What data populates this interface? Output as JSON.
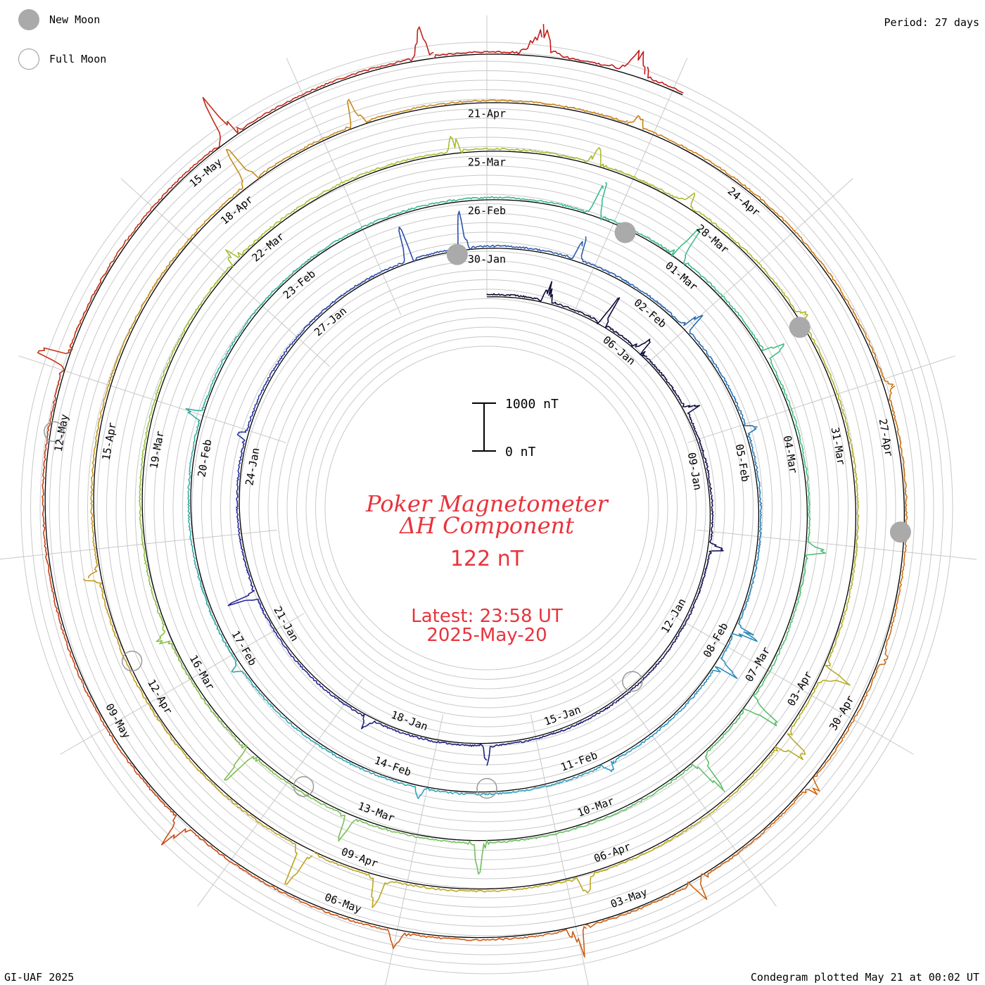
{
  "legend": {
    "new_moon_label": "New Moon",
    "full_moon_label": "Full Moon",
    "new_moon_color": "#aaaaaa",
    "full_moon_color": "#999999"
  },
  "period_label": "Period: 27 days",
  "footer_left": "GI-UAF 2025",
  "footer_right": "Condegram plotted May 21 at 00:02 UT",
  "scale_bar": {
    "top_label": "1000 nT",
    "bottom_label": "0 nT"
  },
  "center": {
    "title_line1": "Poker Magnetometer",
    "title_line2": "ΔH Component",
    "current_value": "122 nT",
    "latest_line1": "Latest: 23:58 UT",
    "latest_line2": "2025-May-20",
    "title_color": "#e8333c"
  },
  "chart_data": {
    "type": "line",
    "subtype": "condegram (spiral)",
    "period_days": 27,
    "start_date": "2025-01-03",
    "end_date": "2025-05-20",
    "grid": true,
    "date_labels": [
      {
        "day": 3,
        "text": "06-Jan"
      },
      {
        "day": 6,
        "text": "09-Jan"
      },
      {
        "day": 9,
        "text": "12-Jan"
      },
      {
        "day": 12,
        "text": "15-Jan"
      },
      {
        "day": 15,
        "text": "18-Jan"
      },
      {
        "day": 18,
        "text": "21-Jan"
      },
      {
        "day": 21,
        "text": "24-Jan"
      },
      {
        "day": 24,
        "text": "27-Jan"
      },
      {
        "day": 27,
        "text": "30-Jan"
      },
      {
        "day": 30,
        "text": "02-Feb"
      },
      {
        "day": 33,
        "text": "05-Feb"
      },
      {
        "day": 36,
        "text": "08-Feb"
      },
      {
        "day": 39,
        "text": "11-Feb"
      },
      {
        "day": 42,
        "text": "14-Feb"
      },
      {
        "day": 45,
        "text": "17-Feb"
      },
      {
        "day": 48,
        "text": "20-Feb"
      },
      {
        "day": 51,
        "text": "23-Feb"
      },
      {
        "day": 54,
        "text": "26-Feb"
      },
      {
        "day": 57,
        "text": "01-Mar"
      },
      {
        "day": 60,
        "text": "04-Mar"
      },
      {
        "day": 63,
        "text": "07-Mar"
      },
      {
        "day": 66,
        "text": "10-Mar"
      },
      {
        "day": 69,
        "text": "13-Mar"
      },
      {
        "day": 72,
        "text": "16-Mar"
      },
      {
        "day": 75,
        "text": "19-Mar"
      },
      {
        "day": 78,
        "text": "22-Mar"
      },
      {
        "day": 81,
        "text": "25-Mar"
      },
      {
        "day": 84,
        "text": "28-Mar"
      },
      {
        "day": 87,
        "text": "31-Mar"
      },
      {
        "day": 90,
        "text": "03-Apr"
      },
      {
        "day": 93,
        "text": "06-Apr"
      },
      {
        "day": 96,
        "text": "09-Apr"
      },
      {
        "day": 99,
        "text": "12-Apr"
      },
      {
        "day": 102,
        "text": "15-Apr"
      },
      {
        "day": 105,
        "text": "18-Apr"
      },
      {
        "day": 108,
        "text": "21-Apr"
      },
      {
        "day": 111,
        "text": "24-Apr"
      },
      {
        "day": 114,
        "text": "27-Apr"
      },
      {
        "day": 117,
        "text": "30-Apr"
      },
      {
        "day": 120,
        "text": "03-May"
      },
      {
        "day": 123,
        "text": "06-May"
      },
      {
        "day": 126,
        "text": "09-May"
      },
      {
        "day": 129,
        "text": "12-May"
      },
      {
        "day": 132,
        "text": "15-May"
      }
    ],
    "new_moons": [
      26.5,
      56,
      85.5,
      115
    ],
    "full_moons": [
      10.5,
      40.5,
      70,
      99.5,
      129
    ],
    "series": [
      {
        "days": [
          0,
          27
        ],
        "color": "#1a0a3a",
        "disturbances": [
          [
            1.2,
            220,
            0.05
          ],
          [
            2.4,
            300,
            0.04
          ],
          [
            3.3,
            180,
            0.06
          ],
          [
            4.8,
            120,
            0.05
          ],
          [
            7.5,
            90,
            0.05
          ],
          [
            13.5,
            110,
            0.05
          ],
          [
            15.7,
            80,
            0.06
          ],
          [
            18.7,
            150,
            0.04
          ],
          [
            21.5,
            60,
            0.05
          ],
          [
            25.7,
            200,
            0.04
          ],
          [
            26.6,
            220,
            0.05
          ]
        ]
      },
      {
        "days": [
          27,
          54
        ],
        "color": "#2a2f9a",
        "disturbances": [
          [
            28.5,
            140,
            0.05
          ],
          [
            30.6,
            180,
            0.04
          ],
          [
            32.5,
            90,
            0.05
          ],
          [
            35.7,
            250,
            0.04
          ],
          [
            36.3,
            200,
            0.05
          ],
          [
            38.6,
            120,
            0.05
          ],
          [
            41.5,
            80,
            0.05
          ],
          [
            44.8,
            60,
            0.05
          ],
          [
            48.6,
            100,
            0.05
          ]
        ]
      },
      {
        "days": [
          54,
          81
        ],
        "color": "#2b8fb8",
        "disturbances": [
          [
            55.5,
            200,
            0.06
          ],
          [
            56.8,
            260,
            0.05
          ],
          [
            58.6,
            120,
            0.05
          ],
          [
            61.3,
            110,
            0.05
          ],
          [
            63.5,
            220,
            0.05
          ],
          [
            64.5,
            260,
            0.05
          ],
          [
            67.6,
            200,
            0.05
          ],
          [
            69.3,
            250,
            0.04
          ],
          [
            70.8,
            240,
            0.05
          ],
          [
            72.6,
            100,
            0.05
          ],
          [
            77.6,
            120,
            0.05
          ],
          [
            80.6,
            150,
            0.05
          ]
        ]
      },
      {
        "days": [
          81,
          108
        ],
        "color": "#4dc07a",
        "disturbances": [
          [
            82.3,
            130,
            0.05
          ],
          [
            83.5,
            120,
            0.05
          ],
          [
            85.4,
            60,
            0.05
          ],
          [
            89.7,
            160,
            0.05
          ],
          [
            90.6,
            230,
            0.06
          ],
          [
            93.4,
            120,
            0.05
          ],
          [
            95.7,
            180,
            0.05
          ],
          [
            96.6,
            220,
            0.05
          ],
          [
            100.5,
            90,
            0.05
          ],
          [
            105.3,
            230,
            0.05
          ],
          [
            106.6,
            150,
            0.05
          ]
        ]
      },
      {
        "days": [
          108,
          135
        ],
        "color": "#b8a818",
        "disturbances": [
          [
            109.6,
            90,
            0.05
          ],
          [
            113.5,
            60,
            0.05
          ],
          [
            116.3,
            80,
            0.05
          ],
          [
            117.8,
            120,
            0.05
          ],
          [
            119.3,
            190,
            0.05
          ],
          [
            120.6,
            240,
            0.05
          ],
          [
            122.4,
            130,
            0.05
          ],
          [
            124.8,
            200,
            0.05
          ],
          [
            129.7,
            220,
            0.05
          ],
          [
            132.4,
            250,
            0.05
          ],
          [
            134.4,
            180,
            0.05
          ]
        ]
      },
      {
        "days": [
          135,
          137
        ],
        "color": "#c0151a",
        "disturbances": [
          [
            135.5,
            150,
            0.1
          ],
          [
            136.4,
            120,
            0.1
          ]
        ]
      }
    ],
    "spiral_color_stops": [
      "#0a0830",
      "#2a2aa0",
      "#2aa0c0",
      "#40c080",
      "#a8c030",
      "#c0a020",
      "#d06a10",
      "#c0151a"
    ]
  }
}
